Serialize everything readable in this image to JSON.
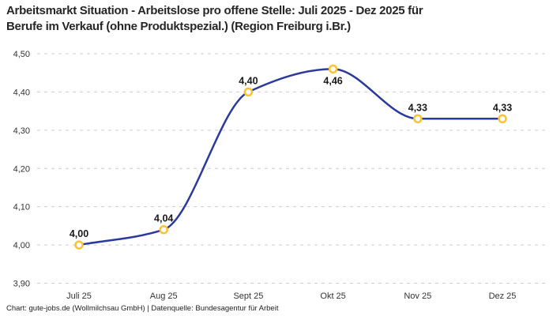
{
  "header": {
    "title_lines": [
      "Arbeitsmarkt Situation - Arbeitslose pro offene Stelle: Juli 2025 - Dez 2025 für",
      "Berufe im Verkauf (ohne Produktspezial.) (Region Freiburg i.Br.)"
    ]
  },
  "footer": {
    "credit": "Chart: gute-jobs.de (Wollmilchsau GmbH) | Datenquelle: Bundesagentur für Arbeit"
  },
  "chart_data": {
    "type": "line",
    "title": "Arbeitsmarkt Situation - Arbeitslose pro offene Stelle: Juli 2025 - Dez 2025 für Berufe im Verkauf (ohne Produktspezial.) (Region Freiburg i.Br.)",
    "categories": [
      "Juli 25",
      "Aug 25",
      "Sept 25",
      "Okt 25",
      "Nov 25",
      "Dez 25"
    ],
    "series": [
      {
        "name": "Arbeitslose pro offene Stelle",
        "values": [
          4.0,
          4.04,
          4.4,
          4.46,
          4.33,
          4.33
        ]
      }
    ],
    "point_labels": [
      "4,00",
      "4,04",
      "4,40",
      "4,46",
      "4,33",
      "4,33"
    ],
    "point_label_positions": [
      "above",
      "above",
      "above",
      "below",
      "above",
      "above"
    ],
    "xlabel": "",
    "ylabel": "",
    "ylim": [
      3.9,
      4.5
    ],
    "yticks": [
      3.9,
      4.0,
      4.1,
      4.2,
      4.3,
      4.4,
      4.5
    ],
    "ytick_labels": [
      "3,90",
      "4,00",
      "4,10",
      "4,20",
      "4,30",
      "4,40",
      "4,50"
    ],
    "grid": "horizontal-dashed",
    "legend": "none",
    "line_smoothing": "monotone",
    "colors": {
      "line": "#2b3a9d",
      "marker_stroke": "#fcc331",
      "marker_fill": "#ffffff",
      "grid": "#cccccc",
      "title": "#262626",
      "tick_text": "#333333",
      "point_label": "#1a1a1a",
      "background": "#ffffff"
    }
  }
}
